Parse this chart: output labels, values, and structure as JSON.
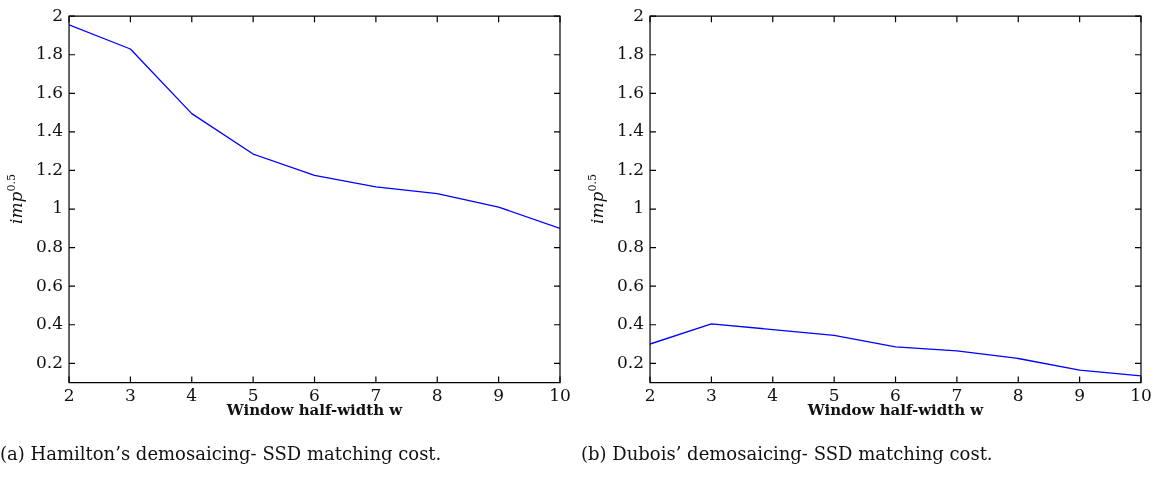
{
  "chart_data": [
    {
      "type": "line",
      "xlabel": "Window half-width w",
      "ylabel": "imp$^{0.5}$",
      "x": [
        2,
        3,
        4,
        5,
        6,
        7,
        8,
        9,
        10
      ],
      "series": [
        {
          "color": "#0000ff",
          "values": [
            1.955,
            1.83,
            1.495,
            1.285,
            1.175,
            1.115,
            1.08,
            1.01,
            0.9
          ]
        }
      ],
      "xlim": [
        2,
        10
      ],
      "xticks": [
        2,
        3,
        4,
        5,
        6,
        7,
        8,
        9,
        10
      ],
      "ylim": [
        0.1,
        2
      ],
      "yticks": [
        0.2,
        0.4,
        0.6,
        0.8,
        1,
        1.2,
        1.4,
        1.6,
        1.8,
        2
      ],
      "legend": false,
      "marker": "none",
      "line_style": "solid",
      "annotations": [
        "(a) Hamilton’s demosaicing- SSD matching cost."
      ]
    },
    {
      "type": "line",
      "xlabel": "Window half-width w",
      "ylabel": "imp$^{0.5}$",
      "x": [
        2,
        3,
        4,
        5,
        6,
        7,
        8,
        9,
        10
      ],
      "series": [
        {
          "color": "#0000ff",
          "values": [
            0.3,
            0.405,
            0.375,
            0.345,
            0.285,
            0.265,
            0.225,
            0.165,
            0.135
          ]
        }
      ],
      "xlim": [
        2,
        10
      ],
      "xticks": [
        2,
        3,
        4,
        5,
        6,
        7,
        8,
        9,
        10
      ],
      "ylim": [
        0.1,
        2
      ],
      "yticks": [
        0.2,
        0.4,
        0.6,
        0.8,
        1,
        1.2,
        1.4,
        1.6,
        1.8,
        2
      ],
      "legend": false,
      "marker": "none",
      "line_style": "solid",
      "annotations": [
        "(b) Dubois’ demosaicing- SSD matching cost."
      ]
    }
  ]
}
